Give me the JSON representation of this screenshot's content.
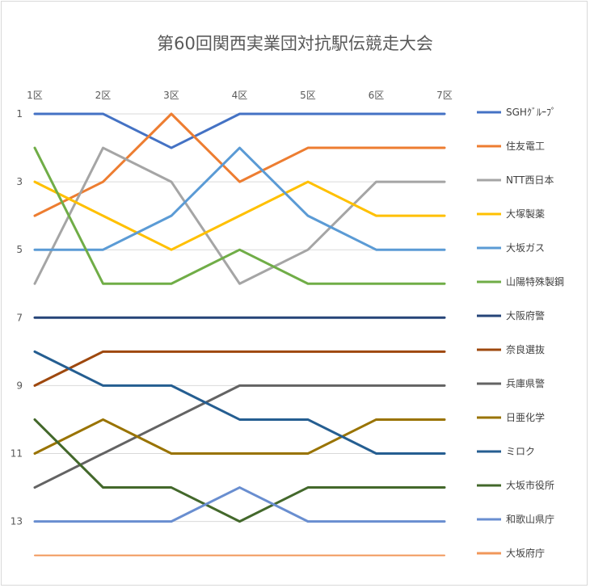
{
  "chart_data": {
    "type": "line",
    "title": "第60回関西実業団対抗駅伝競走大会",
    "xlabel": "",
    "ylabel": "",
    "categories": [
      "1区",
      "2区",
      "3区",
      "4区",
      "5区",
      "6区",
      "7区"
    ],
    "y_ticks": [
      "1",
      "3",
      "5",
      "7",
      "9",
      "11",
      "13"
    ],
    "ylim": [
      1,
      14
    ],
    "y_reversed": true,
    "grid": true,
    "legend_position": "right",
    "series": [
      {
        "name": "SGHｸﾞﾙｰﾌﾟ",
        "color": "#4472c4",
        "values": [
          1,
          1,
          2,
          1,
          1,
          1,
          1
        ]
      },
      {
        "name": "住友電工",
        "color": "#ed7d31",
        "values": [
          4,
          3,
          1,
          3,
          2,
          2,
          2
        ]
      },
      {
        "name": "NTT西日本",
        "color": "#a5a5a5",
        "values": [
          6,
          2,
          3,
          6,
          5,
          3,
          3
        ]
      },
      {
        "name": "大塚製薬",
        "color": "#ffc000",
        "values": [
          3,
          4,
          5,
          4,
          3,
          4,
          4
        ]
      },
      {
        "name": "大坂ガス",
        "color": "#5b9bd5",
        "values": [
          5,
          5,
          4,
          2,
          4,
          5,
          5
        ]
      },
      {
        "name": "山陽特殊製鋼",
        "color": "#70ad47",
        "values": [
          2,
          6,
          6,
          5,
          6,
          6,
          6
        ]
      },
      {
        "name": "大阪府警",
        "color": "#264478",
        "values": [
          7,
          7,
          7,
          7,
          7,
          7,
          7
        ]
      },
      {
        "name": "奈良選抜",
        "color": "#9e480e",
        "values": [
          9,
          8,
          8,
          8,
          8,
          8,
          8
        ]
      },
      {
        "name": "兵庫県警",
        "color": "#636363",
        "values": [
          12,
          11,
          10,
          9,
          9,
          9,
          9
        ]
      },
      {
        "name": "日亜化学",
        "color": "#997300",
        "values": [
          11,
          10,
          11,
          11,
          11,
          10,
          10
        ]
      },
      {
        "name": "ミロク",
        "color": "#255e91",
        "values": [
          8,
          9,
          9,
          10,
          10,
          11,
          11
        ]
      },
      {
        "name": "大坂市役所",
        "color": "#43682b",
        "values": [
          10,
          12,
          12,
          13,
          12,
          12,
          12
        ]
      },
      {
        "name": "和歌山県庁",
        "color": "#698ed0",
        "values": [
          13,
          13,
          13,
          12,
          13,
          13,
          13
        ]
      },
      {
        "name": "大坂府庁",
        "color": "#f1975a",
        "values": [
          14,
          14,
          14,
          14,
          14,
          14,
          14
        ]
      }
    ]
  }
}
